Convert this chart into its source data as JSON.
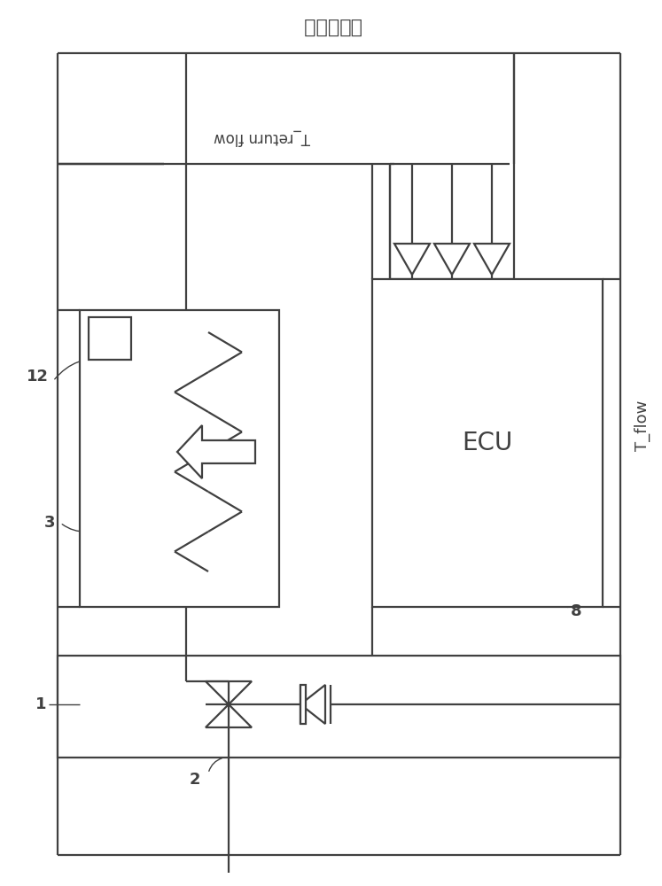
{
  "bg_color": "#ffffff",
  "line_color": "#404040",
  "lw": 1.6,
  "title": "分配器装置",
  "T_return": "T_return flow",
  "T_flow": "T_flow",
  "ECU": "ECU",
  "label_1": "1",
  "label_2": "2",
  "label_3": "3",
  "label_8": "8",
  "label_12": "12"
}
